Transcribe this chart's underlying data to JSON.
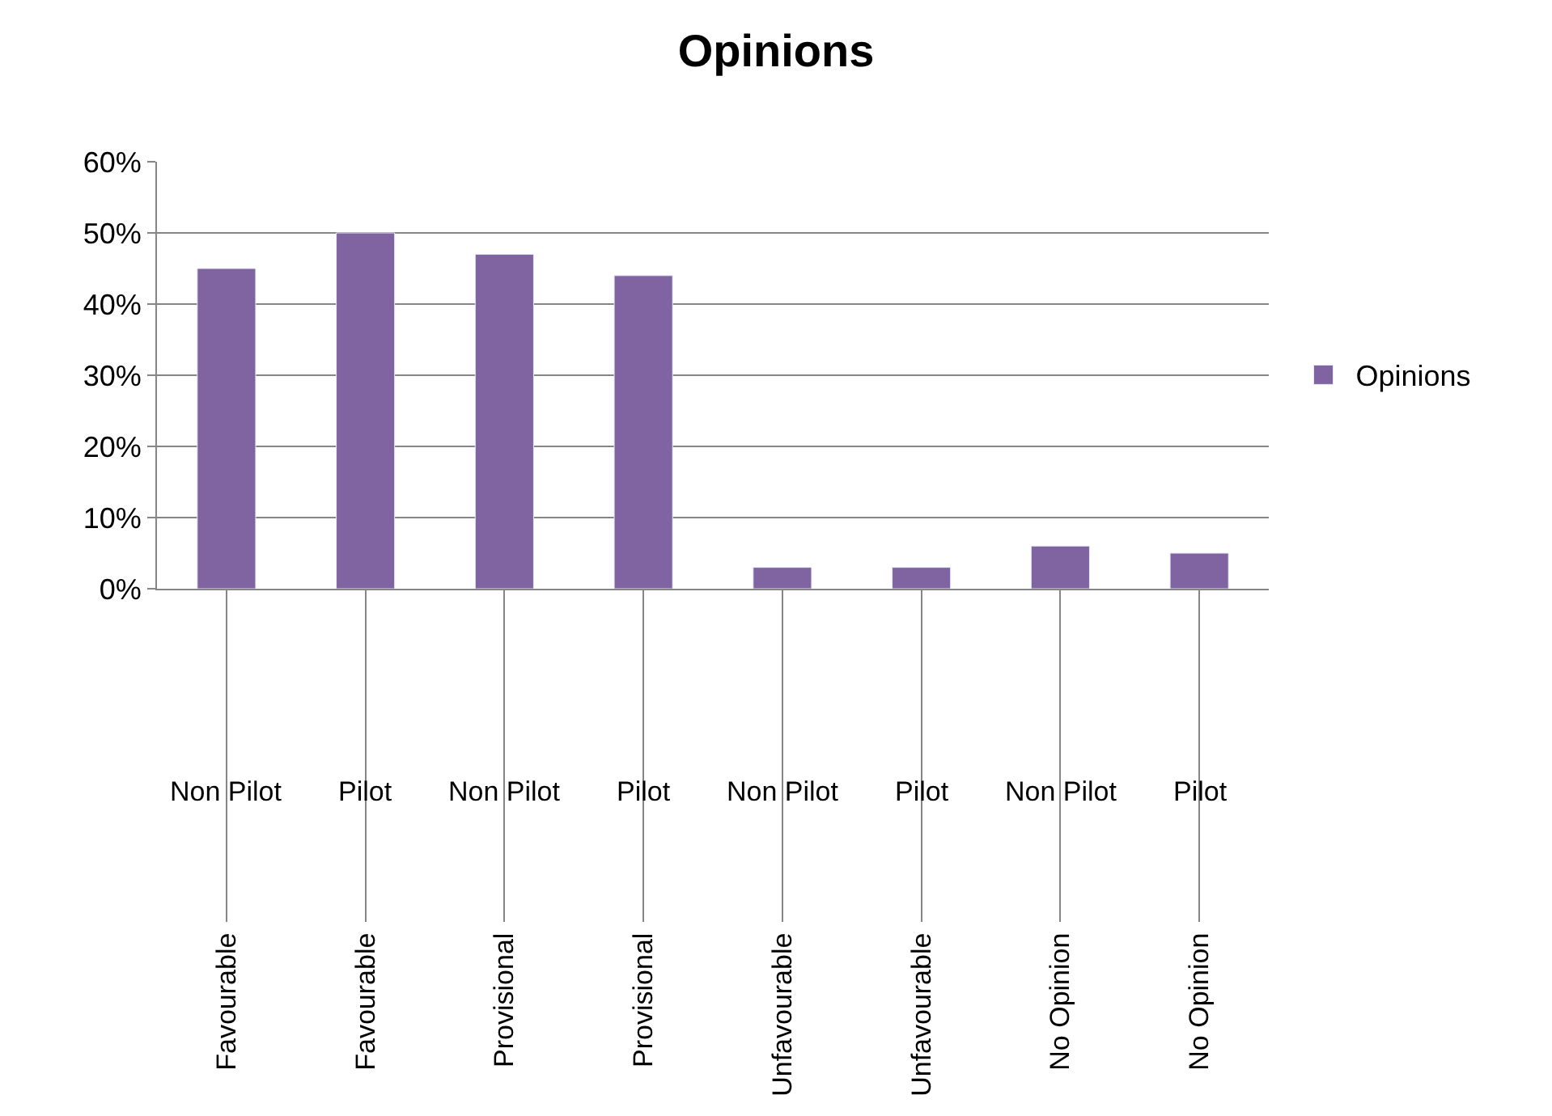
{
  "chart_data": {
    "type": "bar",
    "title": "Opinions",
    "categories": [
      "Favourable\nNon Pilot",
      "Favourable\nPilot",
      "Provisional\nNon Pilot",
      "Provisional\nPilot",
      "Unfavourable\nNon Pilot",
      "Unfavourable\nPilot",
      "No Opinion\nNon Pilot",
      "No Opinion\nPilot"
    ],
    "series": [
      {
        "name": "Opinions",
        "color": "#8064a2",
        "values": [
          45,
          50,
          47,
          44,
          3,
          3,
          6,
          5
        ]
      }
    ],
    "ylim": [
      0,
      60
    ],
    "yticks": [
      {
        "value": 0,
        "label": "0%"
      },
      {
        "value": 10,
        "label": "10%"
      },
      {
        "value": 20,
        "label": "20%"
      },
      {
        "value": 30,
        "label": "30%"
      },
      {
        "value": 40,
        "label": "40%"
      },
      {
        "value": 50,
        "label": "50%"
      },
      {
        "value": 60,
        "label": "60%"
      }
    ],
    "grid": "y",
    "legend": "right"
  }
}
